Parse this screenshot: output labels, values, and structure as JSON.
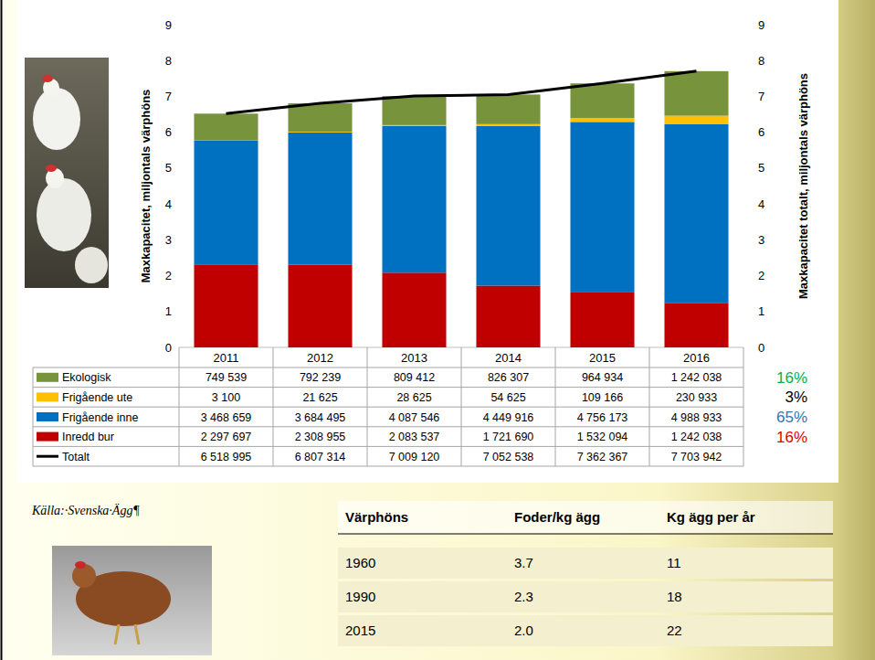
{
  "chart_data": {
    "type": "bar",
    "stacked": true,
    "grid": false,
    "categories": [
      "2011",
      "2012",
      "2013",
      "2014",
      "2015",
      "2016"
    ],
    "y_label": "Maxkapacitet, miljontals värphöns",
    "y2_label": "Maxkapacitet totalt, miljontals värphöns",
    "ylim": [
      0,
      9
    ],
    "yticks": [
      0,
      1,
      2,
      3,
      4,
      5,
      6,
      7,
      8,
      9
    ],
    "y2lim": [
      0,
      9
    ],
    "y2ticks": [
      0,
      1,
      2,
      3,
      4,
      5,
      6,
      7,
      8,
      9
    ],
    "series": [
      {
        "name": "Ekologisk",
        "type": "bar",
        "color": "#77933c",
        "values": [
          0.749539,
          0.792239,
          0.809412,
          0.826307,
          0.964934,
          1.242038
        ],
        "value_labels": [
          "749 539",
          "792 239",
          "809 412",
          "826 307",
          "964 934",
          "1 242 038"
        ]
      },
      {
        "name": "Frigående ute",
        "type": "bar",
        "color": "#ffc000",
        "values": [
          0.0031,
          0.021625,
          0.028625,
          0.054625,
          0.109166,
          0.230933
        ],
        "value_labels": [
          "3 100",
          "21 625",
          "28 625",
          "54 625",
          "109 166",
          "230 933"
        ]
      },
      {
        "name": "Frigående inne",
        "type": "bar",
        "color": "#0070c0",
        "values": [
          3.468659,
          3.684495,
          4.087546,
          4.449916,
          4.756173,
          4.988933
        ],
        "value_labels": [
          "3 468 659",
          "3 684 495",
          "4 087 546",
          "4 449 916",
          "4 756 173",
          "4 988 933"
        ]
      },
      {
        "name": "Inredd bur",
        "type": "bar",
        "color": "#c00000",
        "values": [
          2.297697,
          2.308955,
          2.083537,
          1.72169,
          1.532094,
          1.242038
        ],
        "value_labels": [
          "2 297 697",
          "2 308 955",
          "2 083 537",
          "1 721 690",
          "1 532 094",
          "1 242 038"
        ]
      },
      {
        "name": "Totalt",
        "type": "line",
        "color": "#000000",
        "axis": "y2",
        "values": [
          6.518995,
          6.807314,
          7.00912,
          7.052538,
          7.362367,
          7.703942
        ],
        "value_labels": [
          "6 518 995",
          "6 807 314",
          "7 009 120",
          "7 052 538",
          "7 362 367",
          "7 703 942"
        ]
      }
    ],
    "annotations": [
      {
        "text": "16%",
        "color": "#00b050"
      },
      {
        "text": "3%",
        "color": "#000000"
      },
      {
        "text": "65%",
        "color": "#2e75b6"
      },
      {
        "text": "16%",
        "color": "#e00000"
      }
    ]
  },
  "source": "Källa:·Svenska·Ägg¶",
  "table": {
    "columns": [
      "Värphöns",
      "Foder/kg ägg",
      "Kg ägg per år"
    ],
    "rows": [
      [
        "1960",
        "3.7",
        "11"
      ],
      [
        "1990",
        "2.3",
        "18"
      ],
      [
        "2015",
        "2.0",
        "22"
      ]
    ]
  }
}
